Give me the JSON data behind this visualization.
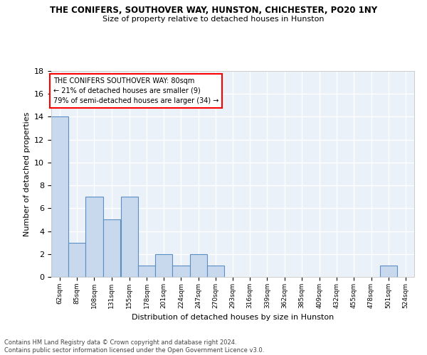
{
  "title": "THE CONIFERS, SOUTHOVER WAY, HUNSTON, CHICHESTER, PO20 1NY",
  "subtitle": "Size of property relative to detached houses in Hunston",
  "xlabel": "Distribution of detached houses by size in Hunston",
  "ylabel": "Number of detached properties",
  "footnote1": "Contains HM Land Registry data © Crown copyright and database right 2024.",
  "footnote2": "Contains public sector information licensed under the Open Government Licence v3.0.",
  "bin_labels": [
    "62sqm",
    "85sqm",
    "108sqm",
    "131sqm",
    "155sqm",
    "178sqm",
    "201sqm",
    "224sqm",
    "247sqm",
    "270sqm",
    "293sqm",
    "316sqm",
    "339sqm",
    "362sqm",
    "385sqm",
    "409sqm",
    "432sqm",
    "455sqm",
    "478sqm",
    "501sqm",
    "524sqm"
  ],
  "counts": [
    14,
    3,
    7,
    5,
    7,
    1,
    2,
    1,
    2,
    1,
    0,
    0,
    0,
    0,
    0,
    0,
    0,
    0,
    0,
    1,
    0
  ],
  "bar_color": "#c9d9ed",
  "bar_edge_color": "#5b8ec4",
  "bg_color": "#eaf1f9",
  "grid_color": "#ffffff",
  "annotation_box_text": "THE CONIFERS SOUTHOVER WAY: 80sqm\n← 21% of detached houses are smaller (9)\n79% of semi-detached houses are larger (34) →",
  "ylim": [
    0,
    18
  ],
  "yticks": [
    0,
    2,
    4,
    6,
    8,
    10,
    12,
    14,
    16,
    18
  ],
  "bin_starts": [
    62,
    85,
    108,
    131,
    155,
    178,
    201,
    224,
    247,
    270,
    293,
    316,
    339,
    362,
    385,
    409,
    432,
    455,
    478,
    501,
    524
  ],
  "bin_width": 23
}
